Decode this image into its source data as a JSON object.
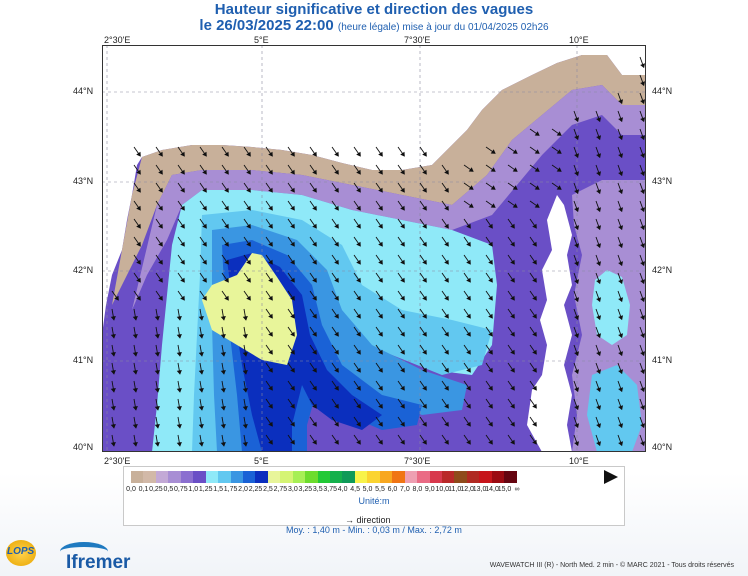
{
  "header": {
    "title": "Hauteur significative et direction des vagues",
    "date": "le 26/03/2025 22:00",
    "subtitle": "(heure légale) mise à jour du 01/04/2025 02h26"
  },
  "map": {
    "lon_labels": [
      "2°30'E",
      "5°E",
      "7°30'E",
      "10°E"
    ],
    "lat_labels": [
      "44°N",
      "43°N",
      "42°N",
      "41°N",
      "40°N"
    ]
  },
  "legend": {
    "values": [
      "0,0",
      "0,1",
      "0,25",
      "0,5",
      "0,75",
      "1,0",
      "1,25",
      "1,5",
      "1,75",
      "2,0",
      "2,25",
      "2,5",
      "2,75",
      "3,0",
      "3,25",
      "3,5",
      "3,75",
      "4,0",
      "4,5",
      "5,0",
      "5,5",
      "6,0",
      "7,0",
      "8,0",
      "9,0",
      "10,0",
      "11,0",
      "12,0",
      "13,0",
      "14,0",
      "15,0",
      "∞"
    ],
    "colors": [
      "#c8b09a",
      "#d2b9a8",
      "#c3a9d6",
      "#a88ed4",
      "#8b6fd0",
      "#6a4fc6",
      "#8fe9f8",
      "#62c8f0",
      "#3a96e2",
      "#1a62d6",
      "#0b2fbe",
      "#e8f59a",
      "#d5f474",
      "#a7ef55",
      "#6ddc2d",
      "#22c936",
      "#14b04c",
      "#0f9a58",
      "#f8f34a",
      "#fbd431",
      "#f8a720",
      "#f07514",
      "#ee9fb2",
      "#ea6b85",
      "#d8394d",
      "#b92929",
      "#8f4b1b",
      "#b02a22",
      "#c6151b",
      "#9b0a12",
      "#650410"
    ],
    "unit": "Unité:m",
    "direction_label": "direction",
    "stats": "Moy. : 1,40 m   -   Min. : 0,03 m / Max. : 2,72 m"
  },
  "footer": {
    "credit": "WAVEWATCH III (R) - North Med. 2 min - © MARC 2021 - Tous droits réservés",
    "logo_lops": "LOPS",
    "logo_ifremer": "Ifremer"
  },
  "colors": {
    "title_blue": "#1f5fb0",
    "land": "#ffffff",
    "arrow": "#111111"
  }
}
